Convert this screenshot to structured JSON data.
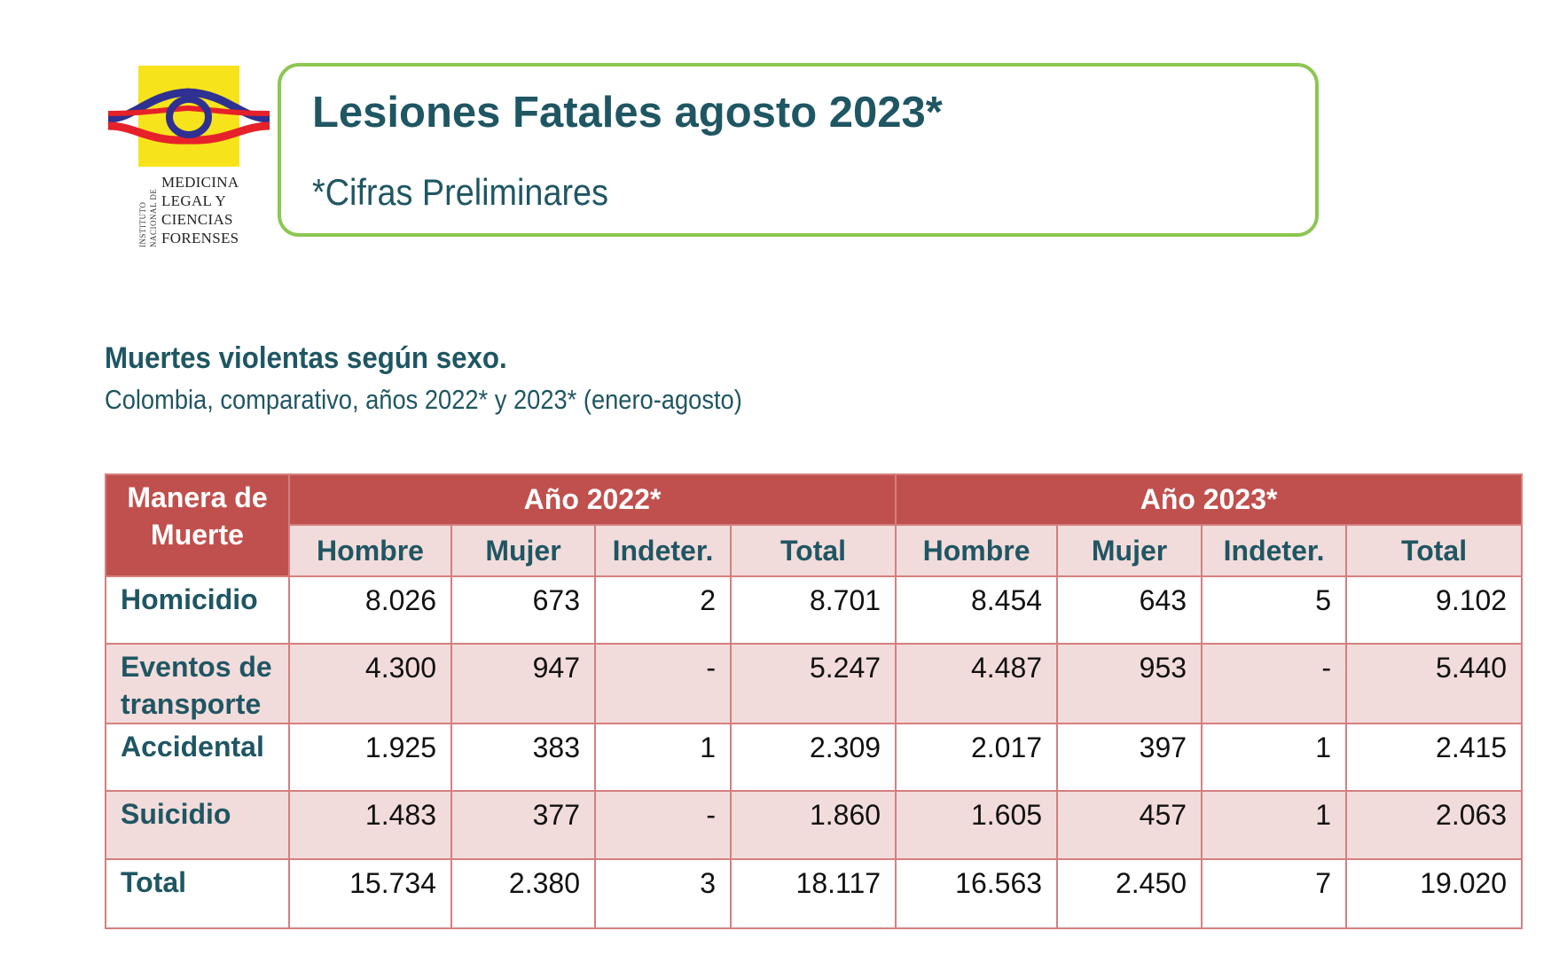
{
  "logo": {
    "side_text_a": "INSTITUTO",
    "side_text_b": "NACIONAL DE",
    "lines": [
      "MEDICINA",
      "LEGAL Y",
      "CIENCIAS",
      "FORENSES"
    ],
    "colors": {
      "yellow": "#f7e31b",
      "blue": "#2e3192",
      "red": "#e62129"
    }
  },
  "header": {
    "title": "Lesiones Fatales agosto 2023*",
    "subtitle": "*Cifras Preliminares",
    "border_color": "#8cc751"
  },
  "section": {
    "title": "Muertes violentas según sexo.",
    "subtitle": "Colombia, comparativo, años 2022* y 2023* (enero-agosto)"
  },
  "table": {
    "corner_header": "Manera de Muerte",
    "year_groups": [
      "Año 2022*",
      "Año 2023*"
    ],
    "columns": [
      "Hombre",
      "Mujer",
      "Indeter.",
      "Total",
      "Hombre",
      "Mujer",
      "Indeter.",
      "Total"
    ],
    "rows": [
      {
        "label": "Homicidio",
        "values": [
          "8.026",
          "673",
          "2",
          "8.701",
          "8.454",
          "643",
          "5",
          "9.102"
        ]
      },
      {
        "label": "Eventos de transporte",
        "values": [
          "4.300",
          "947",
          "-",
          "5.247",
          "4.487",
          "953",
          "-",
          "5.440"
        ]
      },
      {
        "label": "Accidental",
        "values": [
          "1.925",
          "383",
          "1",
          "2.309",
          "2.017",
          "397",
          "1",
          "2.415"
        ]
      },
      {
        "label": "Suicidio",
        "values": [
          "1.483",
          "377",
          "-",
          "1.860",
          "1.605",
          "457",
          "1",
          "2.063"
        ]
      },
      {
        "label": "Total",
        "values": [
          "15.734",
          "2.380",
          "3",
          "18.117",
          "16.563",
          "2.450",
          "7",
          "19.020"
        ]
      }
    ],
    "colors": {
      "header": "#c0504d",
      "band": "#f2dcdb",
      "border": "#d47f7f"
    }
  }
}
